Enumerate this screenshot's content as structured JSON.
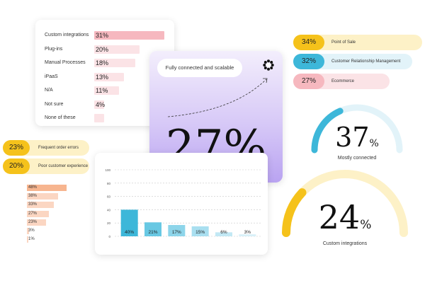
{
  "colors": {
    "pink": "#f6b8bf",
    "pink_light": "#fbe3e6",
    "yellow": "#f5c21b",
    "yellow_light": "#fdf1c7",
    "blue": "#3db7d9",
    "blue_light": "#e2f3f9",
    "orange": "#f7b58f",
    "purple_top": "#efe9fb",
    "purple_bottom": "#b49cf0"
  },
  "logo_icon": "burst-icon",
  "chart_data": [
    {
      "type": "bar",
      "orientation": "horizontal",
      "categories": [
        "Custom integrations",
        "Plug-ins",
        "Manual Processes",
        "iPaaS",
        "N/A",
        "Not sure",
        "None of these"
      ],
      "values": [
        31,
        20,
        18,
        13,
        11,
        4,
        0
      ],
      "value_labels": [
        "31%",
        "20%",
        "18%",
        "13%",
        "11%",
        "4%",
        ""
      ],
      "xlim": [
        0,
        35
      ],
      "grid": false
    },
    {
      "type": "bar",
      "orientation": "horizontal",
      "categories": [
        "Point of Sale",
        "Customer Relationship Management",
        "Ecommerce"
      ],
      "values": [
        34,
        32,
        27
      ],
      "value_labels": [
        "34%",
        "32%",
        "27%"
      ]
    },
    {
      "type": "bar",
      "orientation": "horizontal",
      "categories": [
        "Frequent order errors",
        "Poor customer experience"
      ],
      "values": [
        23,
        20
      ],
      "value_labels": [
        "23%",
        "20%"
      ]
    },
    {
      "type": "bar",
      "orientation": "horizontal",
      "categories": [
        "",
        "",
        "",
        "",
        "",
        "",
        ""
      ],
      "values": [
        48,
        38,
        33,
        27,
        23,
        3,
        1
      ],
      "value_labels": [
        "48%",
        "38%",
        "33%",
        "27%",
        "23%",
        "3%",
        "1%"
      ],
      "xlim": [
        0,
        50
      ]
    },
    {
      "type": "bar",
      "categories": [
        "",
        "",
        "",
        "",
        "",
        ""
      ],
      "values": [
        40,
        21,
        17,
        15,
        6,
        3
      ],
      "value_labels": [
        "40%",
        "21%",
        "17%",
        "15%",
        "6%",
        "3%"
      ],
      "yticks": [
        "100",
        "80",
        "60",
        "40",
        "20",
        "0"
      ],
      "ylim": [
        0,
        100
      ],
      "grid": true
    },
    {
      "type": "gauge",
      "value": 37,
      "max": 100,
      "value_label": "37",
      "unit": "%",
      "label": "Mostly connected"
    },
    {
      "type": "gauge",
      "value": 24,
      "max": 100,
      "value_label": "24",
      "unit": "%",
      "label": "Custom integrations"
    }
  ],
  "highlight_card": {
    "caption": "Fully connected and scalable",
    "value": "27%"
  }
}
